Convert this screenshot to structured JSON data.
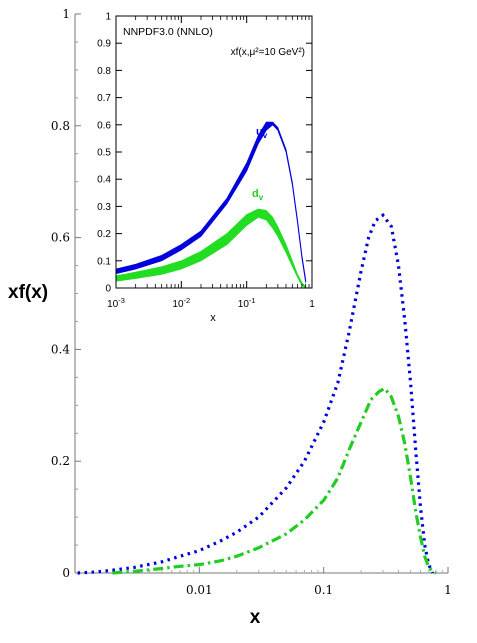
{
  "chart_data": [
    {
      "type": "line",
      "xlabel": "x",
      "ylabel": "xf(x)",
      "x_scale": "log",
      "xlim": [
        0.001,
        1
      ],
      "ylim": [
        0,
        1
      ],
      "x_ticks": [
        {
          "value": 0.01,
          "label": "0.01"
        },
        {
          "value": 0.1,
          "label": "0.1"
        },
        {
          "value": 1,
          "label": "1"
        }
      ],
      "y_ticks": [
        {
          "value": 0,
          "label": "0"
        },
        {
          "value": 0.2,
          "label": "0.2"
        },
        {
          "value": 0.4,
          "label": "0.4"
        },
        {
          "value": 0.6,
          "label": "0.6"
        },
        {
          "value": 0.8,
          "label": "0.8"
        },
        {
          "value": 1,
          "label": "1"
        }
      ],
      "grid": false,
      "series": [
        {
          "color": "#0000dd",
          "style": "dotted",
          "x": [
            0.00105,
            0.0015,
            0.002,
            0.003,
            0.005,
            0.007,
            0.01,
            0.015,
            0.02,
            0.03,
            0.05,
            0.07,
            0.1,
            0.13,
            0.16,
            0.2,
            0.23,
            0.26,
            0.3,
            0.35,
            0.4,
            0.45,
            0.5,
            0.55,
            0.6,
            0.65,
            0.7,
            0.75
          ],
          "y": [
            0.0,
            0.002,
            0.005,
            0.01,
            0.02,
            0.03,
            0.04,
            0.058,
            0.073,
            0.1,
            0.152,
            0.2,
            0.27,
            0.34,
            0.43,
            0.54,
            0.6,
            0.63,
            0.64,
            0.62,
            0.55,
            0.45,
            0.34,
            0.22,
            0.12,
            0.05,
            0.015,
            0.0
          ]
        },
        {
          "color": "#22cc22",
          "style": "dashdot",
          "x": [
            0.002,
            0.003,
            0.005,
            0.007,
            0.01,
            0.015,
            0.02,
            0.03,
            0.05,
            0.07,
            0.1,
            0.13,
            0.16,
            0.2,
            0.24,
            0.28,
            0.31,
            0.35,
            0.4,
            0.45,
            0.5,
            0.55,
            0.6,
            0.65,
            0.7,
            0.75,
            0.8
          ],
          "y": [
            0.0,
            0.003,
            0.008,
            0.012,
            0.015,
            0.022,
            0.03,
            0.045,
            0.07,
            0.095,
            0.13,
            0.17,
            0.22,
            0.27,
            0.31,
            0.325,
            0.33,
            0.315,
            0.28,
            0.23,
            0.17,
            0.11,
            0.065,
            0.03,
            0.01,
            0.003,
            0.0
          ]
        }
      ]
    },
    {
      "type": "area",
      "title": "NNPDF3.0 (NNLO)",
      "annotation": "xf(x,μ²=10 GeV²)",
      "xlabel": "x",
      "x_scale": "log",
      "xlim": [
        0.001,
        1
      ],
      "ylim": [
        0,
        1
      ],
      "x_ticks": [
        {
          "value": 0.001,
          "base": "10",
          "exp": "-3"
        },
        {
          "value": 0.01,
          "base": "10",
          "exp": "-2"
        },
        {
          "value": 0.1,
          "base": "10",
          "exp": "-1"
        },
        {
          "value": 1,
          "base": "1",
          "exp": ""
        }
      ],
      "y_ticks": [
        {
          "value": 0,
          "label": "0"
        },
        {
          "value": 0.1,
          "label": "0.1"
        },
        {
          "value": 0.2,
          "label": "0.2"
        },
        {
          "value": 0.3,
          "label": "0.3"
        },
        {
          "value": 0.4,
          "label": "0.4"
        },
        {
          "value": 0.5,
          "label": "0.5"
        },
        {
          "value": 0.6,
          "label": "0.6"
        },
        {
          "value": 0.7,
          "label": "0.7"
        },
        {
          "value": 0.8,
          "label": "0.8"
        },
        {
          "value": 0.9,
          "label": "0.9"
        },
        {
          "value": 1,
          "label": "1"
        }
      ],
      "grid": false,
      "series": [
        {
          "name_base": "u",
          "name_sub": "v",
          "color": "#0000dd",
          "x": [
            0.001,
            0.002,
            0.005,
            0.01,
            0.02,
            0.05,
            0.1,
            0.15,
            0.2,
            0.25,
            0.3,
            0.4,
            0.5,
            0.6,
            0.7,
            0.8
          ],
          "lower": [
            0.053,
            0.07,
            0.1,
            0.14,
            0.19,
            0.31,
            0.43,
            0.53,
            0.58,
            0.6,
            0.58,
            0.5,
            0.38,
            0.24,
            0.11,
            0.02
          ],
          "upper": [
            0.07,
            0.087,
            0.12,
            0.16,
            0.21,
            0.33,
            0.46,
            0.56,
            0.61,
            0.61,
            0.59,
            0.51,
            0.39,
            0.25,
            0.12,
            0.03
          ]
        },
        {
          "name_base": "d",
          "name_sub": "v",
          "color": "#22dd22",
          "x": [
            0.001,
            0.002,
            0.005,
            0.01,
            0.02,
            0.05,
            0.1,
            0.15,
            0.2,
            0.25,
            0.3,
            0.4,
            0.5,
            0.6,
            0.7,
            0.8
          ],
          "lower": [
            0.025,
            0.035,
            0.05,
            0.07,
            0.1,
            0.16,
            0.23,
            0.26,
            0.25,
            0.22,
            0.19,
            0.13,
            0.08,
            0.04,
            0.01,
            0.0
          ],
          "upper": [
            0.045,
            0.058,
            0.078,
            0.1,
            0.135,
            0.2,
            0.27,
            0.29,
            0.285,
            0.26,
            0.225,
            0.16,
            0.1,
            0.05,
            0.02,
            0.005
          ]
        }
      ]
    }
  ]
}
